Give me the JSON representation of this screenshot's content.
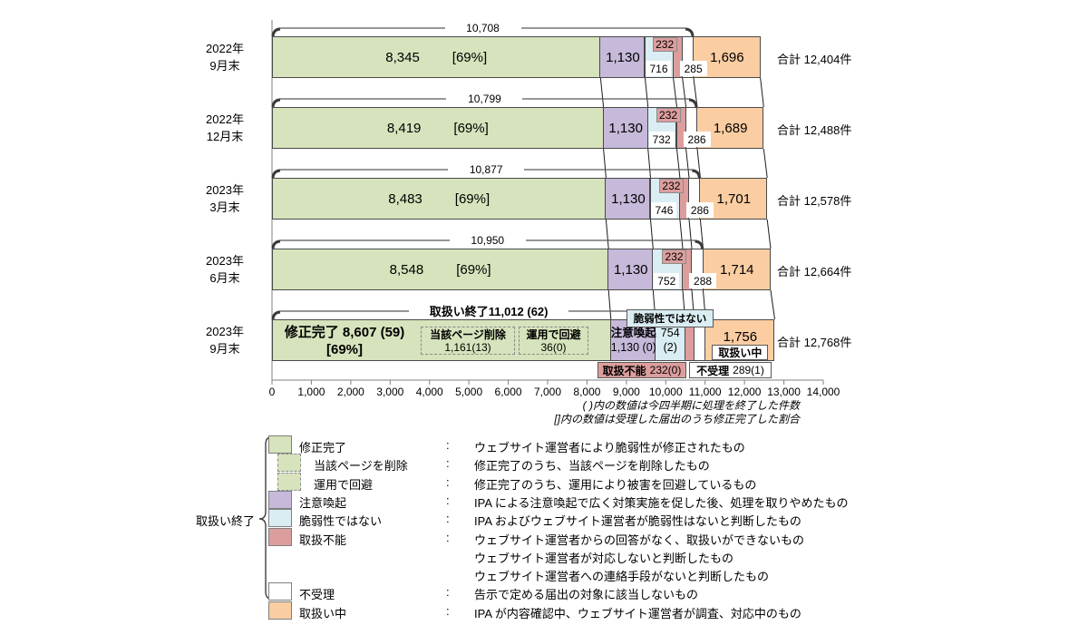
{
  "chart_data": {
    "type": "bar",
    "orientation": "horizontal-stacked",
    "title": "",
    "x_axis": {
      "min": 0,
      "max": 14000,
      "tick_step": 1000,
      "tick_labels": [
        "0",
        "1,000",
        "2,000",
        "3,000",
        "4,000",
        "5,000",
        "6,000",
        "7,000",
        "8,000",
        "9,000",
        "10,000",
        "11,000",
        "12,000",
        "13,000",
        "14,000"
      ]
    },
    "categories": [
      [
        "2022年",
        "9月末"
      ],
      [
        "2022年",
        "12月末"
      ],
      [
        "2023年",
        "3月末"
      ],
      [
        "2023年",
        "6月末"
      ],
      [
        "2023年",
        "9月末"
      ]
    ],
    "series": [
      {
        "name": "修正完了",
        "color": "#D6E3BC",
        "values": [
          8345,
          8419,
          8483,
          8548,
          8607
        ],
        "labels": [
          "8,345",
          "8,419",
          "8,483",
          "8,548",
          "8,607"
        ]
      },
      {
        "name": "注意喚起",
        "color": "#C6B9D9",
        "values": [
          1130,
          1130,
          1130,
          1130,
          1130
        ],
        "labels": [
          "1,130",
          "1,130",
          "1,130",
          "1,130",
          "1,130"
        ]
      },
      {
        "name": "脆弱性ではない",
        "color": "#DAEDF2",
        "values": [
          716,
          732,
          746,
          752,
          754
        ],
        "labels": [
          "716",
          "732",
          "746",
          "752",
          "754"
        ]
      },
      {
        "name": "取扱不能",
        "color": "#DC9E9D",
        "values": [
          232,
          232,
          232,
          232,
          232
        ],
        "labels": [
          "232",
          "232",
          "232",
          "232",
          "232"
        ]
      },
      {
        "name": "不受理",
        "color": "#FFFFFF",
        "values": [
          285,
          286,
          286,
          288,
          289
        ],
        "labels": [
          "285",
          "286",
          "286",
          "288",
          "289"
        ]
      },
      {
        "name": "取扱い中",
        "color": "#FACDA2",
        "values": [
          1696,
          1689,
          1701,
          1714,
          1756
        ],
        "labels": [
          "1,696",
          "1,689",
          "1,701",
          "1,714",
          "1,756"
        ]
      }
    ],
    "fix_ratio_label": "[69%]",
    "closed_subtotal": {
      "name": "取扱い終了",
      "values": [
        10708,
        10799,
        10877,
        10950,
        11012
      ],
      "labels": [
        "10,708",
        "10,799",
        "10,877",
        "10,950"
      ],
      "last_label": "取扱い終了11,012 (62)"
    },
    "totals": {
      "values": [
        12404,
        12488,
        12578,
        12664,
        12768
      ],
      "labels": [
        "合計 12,404件",
        "合計 12,488件",
        "合計 12,578件",
        "合計 12,664件",
        "合計 12,768件"
      ]
    },
    "last_row_detail": {
      "green_line1": "修正完了 8,607 (59)",
      "green_line2": "[69%]",
      "sub_boxes": [
        {
          "title": "当該ページ削除",
          "value": "1,161(13)"
        },
        {
          "title": "運用で回避",
          "value": "36(0)"
        }
      ],
      "purple_title": "注意喚起",
      "purple_value": "1,130 (0)",
      "blue_value_line1": "754",
      "blue_value_line2": "(2)",
      "blue_tag": "脆弱性ではない",
      "pink_tag": {
        "term": "取扱不能",
        "value": "232(0)"
      },
      "white_tag": {
        "term": "不受理",
        "value": "289(1)"
      },
      "orange_value": "1,756",
      "orange_tag": "取扱い中"
    }
  },
  "notes": [
    "( )内の数値は今四半期に処理を終了した件数",
    "[]内の数値は受理した届出のうち修正完了した割合"
  ],
  "legend": {
    "group_label": "取扱い終了",
    "items": [
      {
        "label": "修正完了",
        "swatch": "solid",
        "color": "#D6E3BC",
        "indent": false,
        "desc": [
          "ウェブサイト運営者により脆弱性が修正されたもの"
        ]
      },
      {
        "label": "当該ページを削除",
        "swatch": "dashed",
        "color": "#D6E3BC",
        "indent": true,
        "desc": [
          "修正完了のうち、当該ページを削除したもの"
        ]
      },
      {
        "label": "運用で回避",
        "swatch": "dashed",
        "color": "#D6E3BC",
        "indent": true,
        "desc": [
          "修正完了のうち、運用により被害を回避しているもの"
        ]
      },
      {
        "label": "注意喚起",
        "swatch": "solid",
        "color": "#C6B9D9",
        "indent": false,
        "desc": [
          "IPA による注意喚起で広く対策実施を促した後、処理を取りやめたもの"
        ]
      },
      {
        "label": "脆弱性ではない",
        "swatch": "solid",
        "color": "#DAEDF2",
        "indent": false,
        "desc": [
          "IPA およびウェブサイト運営者が脆弱性はないと判断したもの"
        ]
      },
      {
        "label": "取扱不能",
        "swatch": "solid",
        "color": "#DC9E9D",
        "indent": false,
        "desc": [
          "ウェブサイト運営者からの回答がなく、取扱いができないもの",
          "ウェブサイト運営者が対応しないと判断したもの",
          "ウェブサイト運営者への連絡手段がないと判断したもの"
        ]
      },
      {
        "label": "不受理",
        "swatch": "solid",
        "color": "#FFFFFF",
        "indent": false,
        "desc": [
          "告示で定める届出の対象に該当しないもの"
        ]
      },
      {
        "label": "取扱い中",
        "swatch": "solid",
        "color": "#FACDA2",
        "indent": false,
        "desc": [
          "IPA が内容確認中、ウェブサイト運営者が調査、対応中のもの"
        ]
      }
    ]
  }
}
